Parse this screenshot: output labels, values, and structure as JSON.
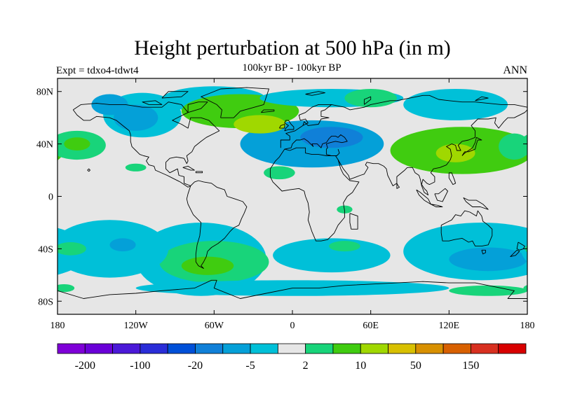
{
  "header": {
    "title": "Height perturbation at 500 hPa (in m)",
    "subtitle": "100kyr BP - 100kyr BP",
    "left_label": "Expt = tdxo4-tdwt4",
    "right_label": "ANN"
  },
  "map": {
    "projection": "cylindrical-equidistant",
    "lon_range": [
      -180,
      180
    ],
    "lat_range": [
      -90,
      90
    ],
    "background_color": "#e6e6e6",
    "coastline_color": "#000000",
    "x_ticks": [
      "180",
      "120W",
      "60W",
      "0",
      "60E",
      "120E",
      "180"
    ],
    "x_tick_values": [
      -180,
      -120,
      -60,
      0,
      60,
      120,
      180
    ],
    "y_ticks": [
      "80N",
      "40N",
      "0",
      "40S",
      "80S"
    ],
    "y_tick_values": [
      80,
      40,
      0,
      -40,
      -80
    ]
  },
  "colorbar": {
    "colors": [
      "#7f00d8",
      "#6a00d8",
      "#4b19d8",
      "#2a2dd8",
      "#0050d8",
      "#1080d8",
      "#04a0d8",
      "#00c0d8",
      "#e6e6e6",
      "#18d47a",
      "#40cc10",
      "#a0d800",
      "#d8c000",
      "#d89000",
      "#d86000",
      "#d83020",
      "#d80000"
    ],
    "labels": [
      "-200",
      "-100",
      "-20",
      "-5",
      "2",
      "10",
      "50",
      "150"
    ],
    "label_boundaries": [
      1,
      3,
      5,
      7,
      9,
      11,
      13,
      15
    ]
  },
  "chart_data": {
    "type": "heatmap",
    "title": "Height perturbation at 500 hPa (in m)",
    "subtitle": "100kyr BP - 100kyr BP",
    "variable": "500 hPa height perturbation",
    "units": "m",
    "period": "ANN",
    "experiment": "tdxo4-tdwt4",
    "contour_levels": [
      -200,
      -150,
      -100,
      -50,
      -20,
      -10,
      -5,
      -2,
      2,
      5,
      10,
      20,
      50,
      100,
      150,
      200
    ],
    "regions": [
      {
        "lon": 15,
        "lat": 40,
        "rx": 55,
        "ry": 18,
        "level": 6
      },
      {
        "lon": 30,
        "lat": 45,
        "rx": 24,
        "ry": 8,
        "level": 5
      },
      {
        "lon": -10,
        "lat": 37,
        "rx": 22,
        "ry": 9,
        "level": 6
      },
      {
        "lon": -60,
        "lat": 74,
        "rx": 40,
        "ry": 10,
        "level": 7
      },
      {
        "lon": -115,
        "lat": 62,
        "rx": 30,
        "ry": 17,
        "level": 7
      },
      {
        "lon": -120,
        "lat": 60,
        "rx": 17,
        "ry": 10,
        "level": 6
      },
      {
        "lon": -140,
        "lat": 70,
        "rx": 14,
        "ry": 8,
        "level": 6
      },
      {
        "lon": -40,
        "lat": 65,
        "rx": 45,
        "ry": 13,
        "level": 10
      },
      {
        "lon": -25,
        "lat": 55,
        "rx": 20,
        "ry": 7,
        "level": 11
      },
      {
        "lon": 30,
        "lat": 75,
        "rx": 55,
        "ry": 7,
        "level": 7
      },
      {
        "lon": 125,
        "lat": 70,
        "rx": 40,
        "ry": 12,
        "level": 7
      },
      {
        "lon": 60,
        "lat": 75,
        "rx": 20,
        "ry": 7,
        "level": 9
      },
      {
        "lon": 130,
        "lat": 35,
        "rx": 55,
        "ry": 18,
        "level": 10
      },
      {
        "lon": 125,
        "lat": 33,
        "rx": 15,
        "ry": 7,
        "level": 11
      },
      {
        "lon": 170,
        "lat": 38,
        "rx": 12,
        "ry": 10,
        "level": 9
      },
      {
        "lon": -165,
        "lat": 39,
        "rx": 22,
        "ry": 11,
        "level": 9
      },
      {
        "lon": -165,
        "lat": 40,
        "rx": 10,
        "ry": 5,
        "level": 10
      },
      {
        "lon": -10,
        "lat": 18,
        "rx": 12,
        "ry": 5,
        "level": 9
      },
      {
        "lon": -120,
        "lat": 22,
        "rx": 8,
        "ry": 3,
        "level": 9
      },
      {
        "lon": -70,
        "lat": -48,
        "rx": 50,
        "ry": 28,
        "level": 7
      },
      {
        "lon": -60,
        "lat": -50,
        "rx": 42,
        "ry": 16,
        "level": 9
      },
      {
        "lon": -65,
        "lat": -53,
        "rx": 20,
        "ry": 7,
        "level": 10
      },
      {
        "lon": 30,
        "lat": -45,
        "rx": 45,
        "ry": 13,
        "level": 7
      },
      {
        "lon": 40,
        "lat": -38,
        "rx": 12,
        "ry": 4,
        "level": 9
      },
      {
        "lon": 145,
        "lat": -42,
        "rx": 60,
        "ry": 22,
        "level": 7
      },
      {
        "lon": 150,
        "lat": -48,
        "rx": 30,
        "ry": 9,
        "level": 6
      },
      {
        "lon": -140,
        "lat": -40,
        "rx": 45,
        "ry": 22,
        "level": 7
      },
      {
        "lon": -130,
        "lat": -37,
        "rx": 10,
        "ry": 5,
        "level": 6
      },
      {
        "lon": -170,
        "lat": -40,
        "rx": 12,
        "ry": 5,
        "level": 9
      },
      {
        "lon": 0,
        "lat": -70,
        "rx": 120,
        "ry": 6,
        "level": 7
      },
      {
        "lon": 150,
        "lat": -72,
        "rx": 30,
        "ry": 4,
        "level": 9
      },
      {
        "lon": -175,
        "lat": -70,
        "rx": 8,
        "ry": 3,
        "level": 9
      },
      {
        "lon": 40,
        "lat": -10,
        "rx": 6,
        "ry": 3,
        "level": 9
      }
    ]
  }
}
